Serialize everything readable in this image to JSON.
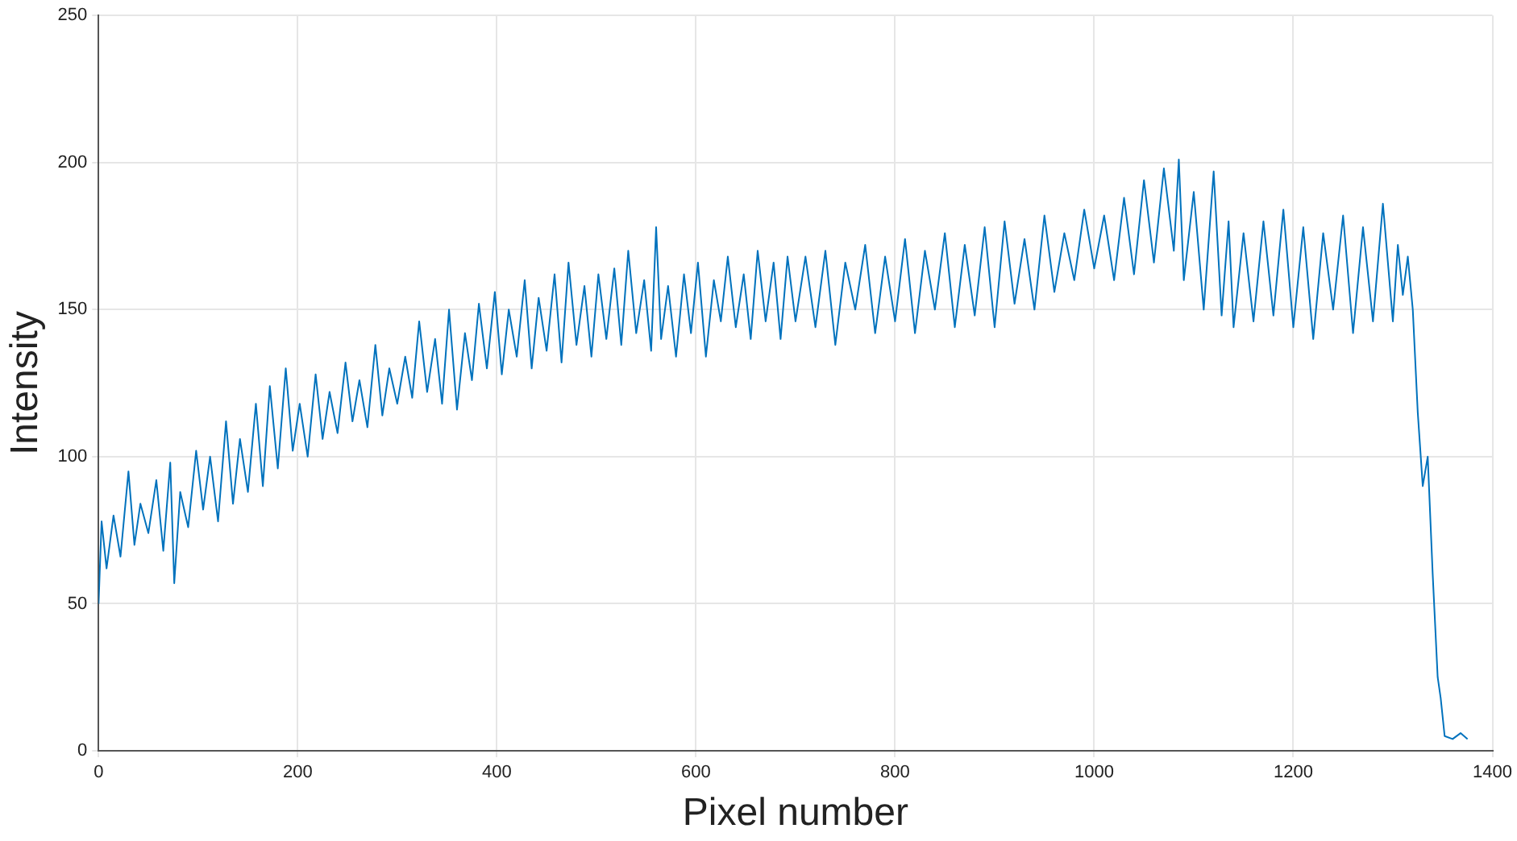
{
  "chart_data": {
    "type": "line",
    "xlabel": "Pixel number",
    "ylabel": "Intensity",
    "xlim": [
      0,
      1400
    ],
    "ylim": [
      0,
      250
    ],
    "xticks": [
      0,
      200,
      400,
      600,
      800,
      1000,
      1200,
      1400
    ],
    "yticks": [
      0,
      50,
      100,
      150,
      200,
      250
    ],
    "grid": true,
    "marker": "none",
    "line_style": "solid",
    "series": [
      {
        "color": "#0072bd",
        "x": [
          0,
          3,
          8,
          15,
          22,
          30,
          36,
          42,
          50,
          58,
          65,
          72,
          76,
          82,
          90,
          98,
          105,
          112,
          120,
          128,
          135,
          142,
          150,
          158,
          165,
          172,
          180,
          188,
          195,
          202,
          210,
          218,
          225,
          232,
          240,
          248,
          255,
          262,
          270,
          278,
          285,
          292,
          300,
          308,
          315,
          322,
          330,
          338,
          345,
          352,
          360,
          368,
          375,
          382,
          390,
          398,
          405,
          412,
          420,
          428,
          435,
          442,
          450,
          458,
          465,
          472,
          480,
          488,
          495,
          502,
          510,
          518,
          525,
          532,
          540,
          548,
          555,
          560,
          565,
          572,
          580,
          588,
          595,
          602,
          610,
          618,
          625,
          632,
          640,
          648,
          655,
          662,
          670,
          678,
          685,
          692,
          700,
          710,
          720,
          730,
          740,
          750,
          760,
          770,
          780,
          790,
          800,
          810,
          820,
          830,
          840,
          850,
          860,
          870,
          880,
          890,
          900,
          910,
          920,
          930,
          940,
          950,
          960,
          970,
          980,
          990,
          1000,
          1010,
          1020,
          1030,
          1040,
          1050,
          1060,
          1070,
          1080,
          1085,
          1090,
          1100,
          1110,
          1120,
          1128,
          1135,
          1140,
          1150,
          1160,
          1170,
          1180,
          1190,
          1200,
          1210,
          1220,
          1230,
          1240,
          1250,
          1260,
          1270,
          1280,
          1290,
          1300,
          1305,
          1310,
          1315,
          1320,
          1325,
          1330,
          1335,
          1340,
          1345,
          1348,
          1352,
          1360,
          1368,
          1375
        ],
        "values": [
          50,
          78,
          62,
          80,
          66,
          95,
          70,
          84,
          74,
          92,
          68,
          98,
          57,
          88,
          76,
          102,
          82,
          100,
          78,
          112,
          84,
          106,
          88,
          118,
          90,
          124,
          96,
          130,
          102,
          118,
          100,
          128,
          106,
          122,
          108,
          132,
          112,
          126,
          110,
          138,
          114,
          130,
          118,
          134,
          120,
          146,
          122,
          140,
          118,
          150,
          116,
          142,
          126,
          152,
          130,
          156,
          128,
          150,
          134,
          160,
          130,
          154,
          136,
          162,
          132,
          166,
          138,
          158,
          134,
          162,
          140,
          164,
          138,
          170,
          142,
          160,
          136,
          178,
          140,
          158,
          134,
          162,
          142,
          166,
          134,
          160,
          146,
          168,
          144,
          162,
          140,
          170,
          146,
          166,
          140,
          168,
          146,
          168,
          144,
          170,
          138,
          166,
          150,
          172,
          142,
          168,
          146,
          174,
          142,
          170,
          150,
          176,
          144,
          172,
          148,
          178,
          144,
          180,
          152,
          174,
          150,
          182,
          156,
          176,
          160,
          184,
          164,
          182,
          160,
          188,
          162,
          194,
          166,
          198,
          170,
          201,
          160,
          190,
          150,
          197,
          148,
          180,
          144,
          176,
          146,
          180,
          148,
          184,
          144,
          178,
          140,
          176,
          150,
          182,
          142,
          178,
          146,
          186,
          146,
          172,
          155,
          168,
          150,
          115,
          90,
          100,
          60,
          25,
          18,
          5,
          4,
          6,
          4
        ]
      }
    ]
  }
}
